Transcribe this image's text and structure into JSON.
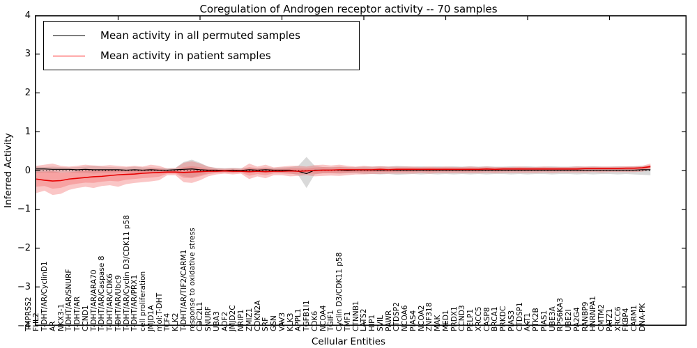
{
  "title": "Coregulation of Androgen receptor activity -- 70 samples",
  "axes": {
    "ylabel": "Inferred Activity",
    "xlabel": "Cellular Entities",
    "ytick_values": [
      4,
      3,
      2,
      1,
      0,
      -1,
      -2,
      -3,
      -4
    ],
    "ytick_labels": [
      "4",
      "3",
      "2",
      "1",
      "0",
      "−1",
      "−2",
      "−3",
      "−4"
    ],
    "ylim": [
      -4,
      4
    ]
  },
  "legend": [
    {
      "label": "Mean activity in all permuted samples",
      "color": "#000000"
    },
    {
      "label": "Mean activity in patient samples",
      "color": "#ff0000"
    }
  ],
  "colors": {
    "patient_line": "#e60000",
    "permuted_line": "#000000",
    "patient_band": "#f26a6a",
    "permuted_band": "#9a9a9a",
    "zero_line": "#000000"
  },
  "chart_data": {
    "type": "line",
    "title": "Coregulation of Androgen receptor activity -- 70 samples",
    "xlabel": "Cellular Entities",
    "ylabel": "Inferred Activity",
    "ylim": [
      -4,
      4
    ],
    "grid": false,
    "legend_position": "upper left",
    "zero_reference_line": 0,
    "categories": [
      "TMPRSS2",
      "FHL2",
      "T-DHT/AR/CyclinD1",
      "AR",
      "NKX3-1",
      "T-DHT/AR/SNURF",
      "T-DHT/AR",
      "CCND1",
      "T-DHT/AR/ARA70",
      "T-DHT/AR/Caspase 8",
      "T-DHT/AR/CDK6",
      "T-DHT/AR/Ubc9",
      "T-DHT/AR/Cyclin D3/CDK11 p58",
      "T-DHT/AR/PRX1",
      "cell proliferation",
      "JMJD1A",
      "mol:T-DHT",
      "TCF4",
      "KLK2",
      "T-DHT/AR/TIF2/CARM1",
      "response to oxidative stress",
      "CDC2L1",
      "SNURF",
      "UBA3",
      "AOF2",
      "JMJD2C",
      "NRIP1",
      "ZMIZ1",
      "CDKN2A",
      "SRF",
      "GSN",
      "VAV3",
      "KLK3",
      "APPL1",
      "TGFB1I1",
      "CDK6",
      "NCOA4",
      "TGIF1",
      "Cyclin D3/CDK11 p58",
      "TMF1",
      "CTNNB1",
      "LATS2",
      "HIP1",
      "SVIL",
      "PAWR",
      "CTDSP2",
      "NCOA6",
      "PIAS4",
      "NCOA2",
      "ZNF318",
      "MAK",
      "MED1",
      "PRDX1",
      "CCND3",
      "PELP1",
      "XRCC5",
      "CASP8",
      "BRCA1",
      "PRKDC",
      "PIAS3",
      "CTDSP1",
      "AKT1",
      "PTK2B",
      "PIAS1",
      "UBE3A",
      "RPS6KA3",
      "UBE2I",
      "PA2G4",
      "RANBP9",
      "HNRNPA1",
      "CMTM2",
      "PATZ1",
      "XRCC6",
      "FKBP4",
      "CARM1",
      "DNA-PK"
    ],
    "series": [
      {
        "name": "Mean activity in all permuted samples",
        "color": "#000000",
        "values": [
          0.04,
          0.04,
          0.03,
          0.03,
          0.03,
          0.02,
          0.03,
          0.02,
          0.02,
          0.02,
          0.02,
          0.01,
          0.02,
          0.01,
          0.02,
          0.01,
          0.01,
          0.02,
          0.03,
          0.04,
          0.02,
          0.01,
          0.01,
          0.0,
          0.01,
          0.0,
          0.02,
          0.01,
          0.02,
          0.01,
          0.01,
          0.01,
          -0.02,
          -0.08,
          0.01,
          0.01,
          0.01,
          0.01,
          0.0,
          0.01,
          0.01,
          0.01,
          0.01,
          0.01,
          0.01,
          0.01,
          0.01,
          0.01,
          0.01,
          0.01,
          0.01,
          0.01,
          0.01,
          0.01,
          0.01,
          0.01,
          0.01,
          0.01,
          0.01,
          0.01,
          0.01,
          0.01,
          0.01,
          0.01,
          0.01,
          0.01,
          0.01,
          0.01,
          0.01,
          0.01,
          0.01,
          0.01,
          0.01,
          0.01,
          0.02,
          0.02
        ]
      },
      {
        "name": "Mean activity in patient samples",
        "color": "#ff0000",
        "values": [
          -0.22,
          -0.25,
          -0.27,
          -0.26,
          -0.22,
          -0.2,
          -0.18,
          -0.16,
          -0.15,
          -0.13,
          -0.11,
          -0.1,
          -0.09,
          -0.07,
          -0.06,
          -0.05,
          -0.04,
          -0.04,
          -0.05,
          -0.04,
          -0.03,
          -0.02,
          -0.02,
          -0.01,
          -0.02,
          -0.02,
          -0.03,
          -0.02,
          -0.03,
          -0.02,
          -0.02,
          -0.01,
          -0.02,
          -0.01,
          0.0,
          0.01,
          0.01,
          0.02,
          0.02,
          0.02,
          0.02,
          0.02,
          0.03,
          0.02,
          0.03,
          0.03,
          0.03,
          0.03,
          0.03,
          0.03,
          0.03,
          0.03,
          0.03,
          0.03,
          0.03,
          0.04,
          0.03,
          0.04,
          0.04,
          0.04,
          0.04,
          0.04,
          0.04,
          0.04,
          0.04,
          0.04,
          0.04,
          0.05,
          0.05,
          0.05,
          0.05,
          0.05,
          0.06,
          0.06,
          0.07,
          0.1
        ]
      }
    ],
    "bands": [
      {
        "name": "permuted std band",
        "color": "#9a9a9a",
        "upper": [
          0.1,
          0.09,
          0.1,
          0.09,
          0.08,
          0.09,
          0.1,
          0.12,
          0.1,
          0.09,
          0.08,
          0.08,
          0.1,
          0.08,
          0.08,
          0.07,
          0.06,
          0.07,
          0.22,
          0.28,
          0.2,
          0.1,
          0.07,
          0.06,
          0.07,
          0.06,
          0.08,
          0.07,
          0.08,
          0.07,
          0.08,
          0.09,
          0.12,
          0.35,
          0.12,
          0.09,
          0.09,
          0.1,
          0.09,
          0.09,
          0.1,
          0.1,
          0.11,
          0.1,
          0.12,
          0.11,
          0.1,
          0.11,
          0.1,
          0.11,
          0.1,
          0.11,
          0.1,
          0.11,
          0.1,
          0.11,
          0.1,
          0.1,
          0.11,
          0.1,
          0.11,
          0.1,
          0.1,
          0.11,
          0.1,
          0.1,
          0.11,
          0.1,
          0.11,
          0.1,
          0.1,
          0.11,
          0.1,
          0.11,
          0.12,
          0.13
        ],
        "lower": [
          -0.06,
          -0.05,
          -0.06,
          -0.05,
          -0.05,
          -0.06,
          -0.06,
          -0.08,
          -0.06,
          -0.06,
          -0.05,
          -0.05,
          -0.07,
          -0.05,
          -0.05,
          -0.05,
          -0.04,
          -0.05,
          -0.15,
          -0.18,
          -0.12,
          -0.07,
          -0.05,
          -0.04,
          -0.05,
          -0.04,
          -0.06,
          -0.05,
          -0.06,
          -0.05,
          -0.06,
          -0.07,
          -0.12,
          -0.45,
          -0.1,
          -0.07,
          -0.07,
          -0.08,
          -0.07,
          -0.07,
          -0.09,
          -0.09,
          -0.1,
          -0.09,
          -0.11,
          -0.1,
          -0.09,
          -0.1,
          -0.09,
          -0.1,
          -0.09,
          -0.1,
          -0.09,
          -0.1,
          -0.09,
          -0.1,
          -0.09,
          -0.09,
          -0.1,
          -0.09,
          -0.1,
          -0.09,
          -0.09,
          -0.1,
          -0.09,
          -0.09,
          -0.1,
          -0.09,
          -0.1,
          -0.09,
          -0.09,
          -0.1,
          -0.09,
          -0.1,
          -0.11,
          -0.12
        ]
      },
      {
        "name": "patient std band",
        "color": "#f26a6a",
        "upper": [
          0.12,
          0.15,
          0.18,
          0.12,
          0.1,
          0.12,
          0.15,
          0.13,
          0.12,
          0.14,
          0.12,
          0.1,
          0.12,
          0.1,
          0.15,
          0.12,
          0.05,
          0.06,
          0.2,
          0.24,
          0.18,
          0.1,
          0.06,
          0.05,
          0.06,
          0.05,
          0.18,
          0.1,
          0.15,
          0.08,
          0.1,
          0.12,
          0.12,
          0.1,
          0.14,
          0.15,
          0.13,
          0.15,
          0.12,
          0.1,
          0.12,
          0.1,
          0.11,
          0.1,
          0.1,
          0.1,
          0.1,
          0.09,
          0.1,
          0.09,
          0.1,
          0.09,
          0.09,
          0.1,
          0.09,
          0.1,
          0.09,
          0.09,
          0.09,
          0.1,
          0.09,
          0.09,
          0.1,
          0.09,
          0.09,
          0.09,
          0.1,
          0.1,
          0.1,
          0.1,
          0.1,
          0.1,
          0.11,
          0.11,
          0.12,
          0.18
        ],
        "lower": [
          -0.58,
          -0.52,
          -0.63,
          -0.6,
          -0.5,
          -0.45,
          -0.42,
          -0.45,
          -0.4,
          -0.38,
          -0.42,
          -0.35,
          -0.32,
          -0.3,
          -0.28,
          -0.25,
          -0.12,
          -0.12,
          -0.3,
          -0.32,
          -0.25,
          -0.15,
          -0.1,
          -0.08,
          -0.1,
          -0.08,
          -0.22,
          -0.15,
          -0.2,
          -0.12,
          -0.12,
          -0.15,
          -0.14,
          -0.12,
          -0.15,
          -0.14,
          -0.13,
          -0.14,
          -0.12,
          -0.1,
          -0.1,
          -0.09,
          -0.09,
          -0.08,
          -0.08,
          -0.08,
          -0.08,
          -0.07,
          -0.08,
          -0.07,
          -0.07,
          -0.07,
          -0.07,
          -0.07,
          -0.07,
          -0.06,
          -0.07,
          -0.06,
          -0.06,
          -0.06,
          -0.06,
          -0.06,
          -0.05,
          -0.06,
          -0.05,
          -0.05,
          -0.05,
          -0.05,
          -0.04,
          -0.05,
          -0.04,
          -0.04,
          -0.04,
          -0.04,
          -0.03,
          0.02
        ]
      }
    ],
    "x_major_tick_indices": [
      10,
      20,
      30,
      40,
      50,
      60,
      70
    ]
  }
}
